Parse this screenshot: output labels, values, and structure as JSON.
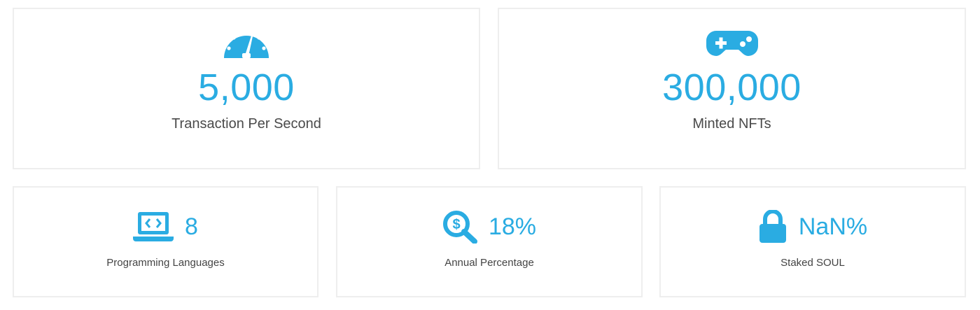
{
  "accent_color": "#2aace2",
  "stats": {
    "tps": {
      "value": "5,000",
      "label": "Transaction Per Second",
      "icon": "speedometer-icon"
    },
    "nfts": {
      "value": "300,000",
      "label": "Minted NFTs",
      "icon": "gamepad-icon"
    },
    "languages": {
      "value": "8",
      "label": "Programming Languages",
      "icon": "laptop-code-icon"
    },
    "apr": {
      "value": "18%",
      "label": "Annual Percentage",
      "icon": "dollar-search-icon"
    },
    "staked": {
      "value": "NaN%",
      "label": "Staked SOUL",
      "icon": "lock-icon"
    }
  }
}
